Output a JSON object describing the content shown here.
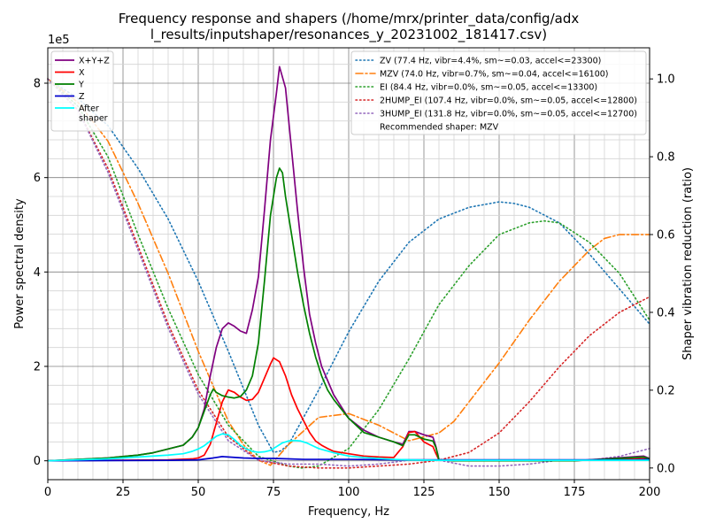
{
  "chart_data": {
    "type": "line",
    "title_lines": [
      "Frequency response and shapers (/home/mrx/printer_data/config/adx",
      "l_results/inputshaper/resonances_y_20231002_181417.csv)"
    ],
    "xlabel": "Frequency, Hz",
    "ylabel": "Power spectral density",
    "y2label": "Shaper vibration reduction (ratio)",
    "y_offset_label": "1e5",
    "xlim": [
      0,
      200
    ],
    "ylim": [
      -0.4,
      8.75
    ],
    "y2lim": [
      -0.03,
      1.08
    ],
    "x_ticks": [
      0,
      25,
      50,
      75,
      100,
      125,
      150,
      175,
      200
    ],
    "y_ticks": [
      0,
      2,
      4,
      6,
      8
    ],
    "y2_ticks": [
      0.0,
      0.2,
      0.4,
      0.6,
      0.8,
      1.0
    ],
    "x_tick_labels": [
      "0",
      "25",
      "50",
      "75",
      "100",
      "125",
      "150",
      "175",
      "200"
    ],
    "y_tick_labels": [
      "0",
      "2",
      "4",
      "6",
      "8"
    ],
    "y2_tick_labels": [
      "0.0",
      "0.2",
      "0.4",
      "0.6",
      "0.8",
      "1.0"
    ],
    "grid": "major and minor",
    "legend_left_placement": "upper-left",
    "legend_right_placement": "upper-right",
    "psd_series": [
      {
        "name": "X+Y+Z",
        "color": "#800080",
        "x": [
          0,
          10,
          20,
          30,
          35,
          40,
          45,
          48,
          50,
          52,
          54,
          56,
          58,
          60,
          62,
          64,
          66,
          68,
          70,
          72,
          74,
          76,
          77,
          79,
          81,
          83,
          85,
          87,
          89,
          91,
          93,
          95,
          100,
          105,
          110,
          115,
          118,
          120,
          122,
          125,
          128,
          129,
          130,
          135,
          150,
          175,
          198,
          200
        ],
        "y": [
          0,
          0.03,
          0.06,
          0.12,
          0.17,
          0.25,
          0.33,
          0.5,
          0.7,
          1.1,
          1.8,
          2.4,
          2.8,
          2.92,
          2.85,
          2.75,
          2.7,
          3.2,
          3.9,
          5.3,
          6.8,
          7.8,
          8.35,
          7.9,
          6.6,
          5.3,
          4.1,
          3.1,
          2.5,
          2.0,
          1.7,
          1.4,
          0.9,
          0.65,
          0.5,
          0.4,
          0.35,
          0.62,
          0.62,
          0.55,
          0.5,
          0.3,
          0.02,
          0,
          0,
          0,
          0.1,
          0.05
        ]
      },
      {
        "name": "X",
        "color": "#ff0000",
        "x": [
          0,
          20,
          40,
          48,
          50,
          52,
          54,
          56,
          58,
          60,
          62,
          64,
          66,
          68,
          70,
          72,
          74,
          75,
          77,
          79,
          81,
          83,
          85,
          87,
          89,
          91,
          93,
          95,
          100,
          105,
          110,
          115,
          118,
          120,
          122,
          125,
          128,
          129,
          130,
          140,
          160,
          180,
          200
        ],
        "y": [
          0,
          0.01,
          0.02,
          0.04,
          0.06,
          0.12,
          0.35,
          0.8,
          1.25,
          1.5,
          1.45,
          1.35,
          1.28,
          1.3,
          1.45,
          1.75,
          2.05,
          2.18,
          2.1,
          1.8,
          1.4,
          1.1,
          0.85,
          0.6,
          0.42,
          0.33,
          0.26,
          0.2,
          0.15,
          0.1,
          0.08,
          0.07,
          0.3,
          0.6,
          0.62,
          0.4,
          0.3,
          0.15,
          0.02,
          0.01,
          0.01,
          0.01,
          0.05
        ]
      },
      {
        "name": "Y",
        "color": "#008000",
        "x": [
          0,
          10,
          20,
          30,
          35,
          40,
          45,
          48,
          50,
          52,
          54,
          55,
          56,
          58,
          60,
          62,
          64,
          66,
          68,
          70,
          72,
          74,
          76,
          77,
          78,
          79,
          81,
          83,
          85,
          87,
          89,
          91,
          93,
          95,
          100,
          105,
          110,
          115,
          118,
          120,
          122,
          125,
          128,
          129,
          130,
          135,
          150,
          175,
          198,
          200
        ],
        "y": [
          0,
          0.03,
          0.06,
          0.12,
          0.17,
          0.25,
          0.33,
          0.5,
          0.7,
          1.05,
          1.4,
          1.52,
          1.45,
          1.38,
          1.35,
          1.33,
          1.36,
          1.5,
          1.8,
          2.5,
          3.8,
          5.2,
          6.0,
          6.2,
          6.1,
          5.6,
          4.8,
          4.0,
          3.3,
          2.7,
          2.2,
          1.8,
          1.5,
          1.3,
          0.9,
          0.6,
          0.5,
          0.4,
          0.32,
          0.55,
          0.55,
          0.46,
          0.42,
          0.28,
          0.02,
          0,
          0,
          0,
          0.08,
          0.04
        ]
      },
      {
        "name": "Z",
        "color": "#0000cd",
        "x": [
          0,
          40,
          50,
          55,
          58,
          60,
          65,
          70,
          75,
          80,
          85,
          100,
          120,
          150,
          195,
          200
        ],
        "y": [
          0,
          0.01,
          0.02,
          0.06,
          0.09,
          0.08,
          0.06,
          0.05,
          0.05,
          0.04,
          0.03,
          0.03,
          0.02,
          0.02,
          0.02,
          0.03
        ]
      },
      {
        "name": "After\nshaper",
        "color": "#00ffff",
        "x": [
          0,
          20,
          30,
          40,
          45,
          48,
          50,
          52,
          54,
          56,
          58,
          60,
          62,
          64,
          66,
          68,
          70,
          72,
          74,
          76,
          78,
          80,
          82,
          84,
          86,
          88,
          90,
          95,
          100,
          105,
          110,
          115,
          120,
          130,
          150,
          200
        ],
        "y": [
          0,
          0.04,
          0.08,
          0.12,
          0.15,
          0.2,
          0.25,
          0.32,
          0.42,
          0.52,
          0.57,
          0.55,
          0.45,
          0.33,
          0.25,
          0.2,
          0.18,
          0.19,
          0.22,
          0.3,
          0.38,
          0.42,
          0.43,
          0.42,
          0.38,
          0.32,
          0.26,
          0.17,
          0.1,
          0.07,
          0.05,
          0.03,
          0.02,
          0.01,
          0.01,
          0.01
        ]
      }
    ],
    "shaper_series": [
      {
        "name": "ZV (77.4 Hz, vibr=4.4%, sm~=0.03, accel<=23300)",
        "color": "#1f77b4",
        "style": "dotted",
        "x": [
          0,
          10,
          20,
          30,
          40,
          50,
          60,
          70,
          75,
          77.4,
          80,
          90,
          100,
          110,
          120,
          130,
          140,
          150,
          155,
          160,
          170,
          180,
          190,
          200
        ],
        "y": [
          1.0,
          0.95,
          0.88,
          0.77,
          0.64,
          0.48,
          0.3,
          0.11,
          0.04,
          0.044,
          0.06,
          0.2,
          0.35,
          0.48,
          0.58,
          0.64,
          0.67,
          0.684,
          0.68,
          0.67,
          0.63,
          0.55,
          0.46,
          0.37
        ]
      },
      {
        "name": "MZV (74.0 Hz, vibr=0.7%, sm~=0.04, accel<=16100)",
        "color": "#ff7f0e",
        "style": "dashdot",
        "x": [
          0,
          10,
          20,
          30,
          40,
          50,
          55,
          60,
          65,
          70,
          74,
          80,
          90,
          100,
          110,
          120,
          130,
          135,
          140,
          150,
          160,
          170,
          180,
          185,
          190,
          195,
          200
        ],
        "y": [
          1.0,
          0.94,
          0.84,
          0.68,
          0.5,
          0.3,
          0.21,
          0.12,
          0.06,
          0.02,
          0.007,
          0.06,
          0.13,
          0.14,
          0.11,
          0.07,
          0.09,
          0.12,
          0.17,
          0.27,
          0.38,
          0.48,
          0.56,
          0.59,
          0.6,
          0.6,
          0.6
        ]
      },
      {
        "name": "EI (84.4 Hz, vibr=0.0%, sm~=0.05, accel<=13300)",
        "color": "#2ca02c",
        "style": "dotted",
        "x": [
          0,
          10,
          20,
          30,
          40,
          50,
          60,
          70,
          80,
          84.4,
          90,
          100,
          110,
          120,
          130,
          140,
          150,
          160,
          165,
          170,
          180,
          190,
          200
        ],
        "y": [
          1.0,
          0.93,
          0.8,
          0.6,
          0.41,
          0.24,
          0.11,
          0.03,
          0.005,
          0.0,
          0.005,
          0.05,
          0.15,
          0.28,
          0.42,
          0.52,
          0.6,
          0.63,
          0.635,
          0.63,
          0.58,
          0.5,
          0.38
        ]
      },
      {
        "name": "2HUMP_EI (107.4 Hz, vibr=0.0%, sm~=0.05, accel<=12800)",
        "color": "#d62728",
        "style": "dotted",
        "x": [
          0,
          10,
          20,
          30,
          40,
          50,
          60,
          70,
          80,
          90,
          100,
          110,
          120,
          130,
          140,
          150,
          160,
          170,
          180,
          190,
          200
        ],
        "y": [
          1.0,
          0.92,
          0.77,
          0.57,
          0.37,
          0.2,
          0.08,
          0.02,
          0.005,
          0.0,
          0.0,
          0.005,
          0.01,
          0.02,
          0.04,
          0.09,
          0.17,
          0.26,
          0.34,
          0.4,
          0.44
        ]
      },
      {
        "name": "3HUMP_EI (131.8 Hz, vibr=0.0%, sm~=0.05, accel<=12700)",
        "color": "#9467bd",
        "style": "dotted",
        "x": [
          0,
          10,
          20,
          30,
          40,
          50,
          60,
          70,
          80,
          90,
          100,
          110,
          120,
          130,
          140,
          150,
          160,
          170,
          180,
          190,
          200
        ],
        "y": [
          1.0,
          0.92,
          0.76,
          0.56,
          0.36,
          0.19,
          0.07,
          0.02,
          0.01,
          0.01,
          0.005,
          0.01,
          0.02,
          0.02,
          0.005,
          0.005,
          0.01,
          0.02,
          0.02,
          0.03,
          0.05
        ]
      }
    ],
    "legend_left": [
      "X+Y+Z",
      "X",
      "Y",
      "Z",
      "After\nshaper"
    ],
    "legend_right_note": "Recommended shaper: MZV"
  }
}
